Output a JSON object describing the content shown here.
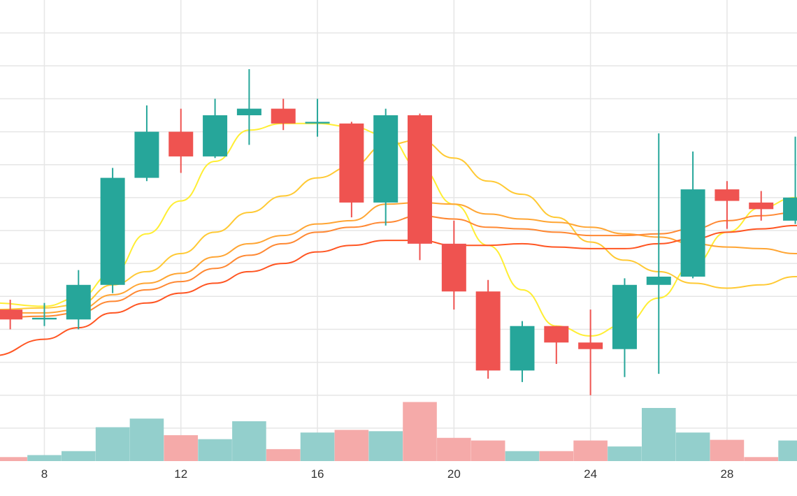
{
  "chart_data": {
    "type": "candlestick",
    "x_ticks": [
      8,
      12,
      16,
      20,
      24,
      28
    ],
    "x_range": [
      6.7,
      30.05
    ],
    "price_range": [
      0,
      14
    ],
    "volume_range": [
      0,
      100
    ],
    "grid": true,
    "colors": {
      "up": "#26a69a",
      "down": "#ef5350",
      "up_volume": "#93cfcc",
      "down_volume": "#f5aaa9"
    },
    "candles": [
      {
        "x": 7,
        "open": 4.6,
        "close": 4.3,
        "high": 4.9,
        "low": 4.0,
        "volume": 6,
        "direction": "down"
      },
      {
        "x": 8,
        "open": 4.3,
        "close": 4.35,
        "high": 4.8,
        "low": 4.1,
        "volume": 9,
        "direction": "up"
      },
      {
        "x": 9,
        "open": 4.3,
        "close": 5.35,
        "high": 5.8,
        "low": 4.0,
        "volume": 15,
        "direction": "up"
      },
      {
        "x": 10,
        "open": 5.35,
        "close": 8.6,
        "high": 8.9,
        "low": 5.1,
        "volume": 51,
        "direction": "up"
      },
      {
        "x": 11,
        "open": 8.6,
        "close": 10.0,
        "high": 10.8,
        "low": 8.5,
        "volume": 64,
        "direction": "up"
      },
      {
        "x": 12,
        "open": 10.0,
        "close": 9.25,
        "high": 10.7,
        "low": 8.75,
        "volume": 39,
        "direction": "down"
      },
      {
        "x": 13,
        "open": 9.25,
        "close": 10.5,
        "high": 11.0,
        "low": 9.2,
        "volume": 33,
        "direction": "up"
      },
      {
        "x": 14,
        "open": 10.5,
        "close": 10.7,
        "high": 11.9,
        "low": 9.6,
        "volume": 60,
        "direction": "up"
      },
      {
        "x": 15,
        "open": 10.7,
        "close": 10.25,
        "high": 11.0,
        "low": 10.05,
        "volume": 18,
        "direction": "down"
      },
      {
        "x": 16,
        "open": 10.25,
        "close": 10.3,
        "high": 11.0,
        "low": 9.85,
        "volume": 43,
        "direction": "up"
      },
      {
        "x": 17,
        "open": 10.25,
        "close": 7.85,
        "high": 10.3,
        "low": 7.4,
        "volume": 47,
        "direction": "down"
      },
      {
        "x": 18,
        "open": 7.85,
        "close": 10.5,
        "high": 10.7,
        "low": 7.15,
        "volume": 45,
        "direction": "up"
      },
      {
        "x": 19,
        "open": 10.5,
        "close": 6.6,
        "high": 10.55,
        "low": 6.1,
        "volume": 89,
        "direction": "down"
      },
      {
        "x": 20,
        "open": 6.6,
        "close": 5.15,
        "high": 7.3,
        "low": 4.6,
        "volume": 35,
        "direction": "down"
      },
      {
        "x": 21,
        "open": 5.15,
        "close": 2.75,
        "high": 5.5,
        "low": 2.5,
        "volume": 31,
        "direction": "down"
      },
      {
        "x": 22,
        "open": 2.75,
        "close": 4.1,
        "high": 4.25,
        "low": 2.4,
        "volume": 15,
        "direction": "up"
      },
      {
        "x": 23,
        "open": 4.1,
        "close": 3.6,
        "high": 4.1,
        "low": 2.95,
        "volume": 15,
        "direction": "down"
      },
      {
        "x": 24,
        "open": 3.6,
        "close": 3.4,
        "high": 4.6,
        "low": 2.0,
        "volume": 31,
        "direction": "down"
      },
      {
        "x": 25,
        "open": 3.4,
        "close": 5.35,
        "high": 5.55,
        "low": 2.55,
        "volume": 22,
        "direction": "up"
      },
      {
        "x": 26,
        "open": 5.35,
        "close": 5.6,
        "high": 9.95,
        "low": 2.65,
        "volume": 80,
        "direction": "up"
      },
      {
        "x": 27,
        "open": 5.6,
        "close": 8.25,
        "high": 9.4,
        "low": 5.55,
        "volume": 43,
        "direction": "up"
      },
      {
        "x": 28,
        "open": 8.25,
        "close": 7.9,
        "high": 8.5,
        "low": 7.05,
        "volume": 32,
        "direction": "down"
      },
      {
        "x": 29,
        "open": 7.85,
        "close": 7.65,
        "high": 8.2,
        "low": 7.3,
        "volume": 6,
        "direction": "down"
      },
      {
        "x": 30,
        "open": 7.3,
        "close": 8.0,
        "high": 9.85,
        "low": 7.2,
        "volume": 31,
        "direction": "up"
      }
    ],
    "overlay_lines": [
      {
        "color": "#ffee33",
        "points": [
          [
            6.5,
            4.8
          ],
          [
            8,
            4.7
          ],
          [
            9,
            4.95
          ],
          [
            10,
            5.7
          ],
          [
            11,
            6.9
          ],
          [
            12,
            7.9
          ],
          [
            13,
            9.1
          ],
          [
            14,
            10.05
          ],
          [
            15,
            10.25
          ],
          [
            16,
            10.25
          ],
          [
            17,
            10.15
          ],
          [
            18,
            9.9
          ],
          [
            19,
            8.9
          ],
          [
            20,
            7.8
          ],
          [
            21,
            6.55
          ],
          [
            22,
            5.2
          ],
          [
            23,
            4.1
          ],
          [
            24,
            3.8
          ],
          [
            25,
            4.15
          ],
          [
            26,
            4.95
          ],
          [
            27,
            5.95
          ],
          [
            28,
            6.95
          ],
          [
            29,
            7.7
          ],
          [
            30,
            8.0
          ],
          [
            30.5,
            8.05
          ]
        ]
      },
      {
        "color": "#ffc933",
        "points": [
          [
            6.5,
            4.6
          ],
          [
            8,
            4.65
          ],
          [
            9,
            4.75
          ],
          [
            10,
            5.35
          ],
          [
            11,
            5.75
          ],
          [
            12,
            6.3
          ],
          [
            13,
            6.95
          ],
          [
            14,
            7.55
          ],
          [
            15,
            8.05
          ],
          [
            16,
            8.6
          ],
          [
            17,
            8.95
          ],
          [
            18,
            9.6
          ],
          [
            19,
            9.75
          ],
          [
            20,
            9.2
          ],
          [
            21,
            8.5
          ],
          [
            22,
            8.1
          ],
          [
            23,
            7.4
          ],
          [
            24,
            6.65
          ],
          [
            25,
            6.1
          ],
          [
            26,
            5.75
          ],
          [
            27,
            5.4
          ],
          [
            28,
            5.25
          ],
          [
            29,
            5.35
          ],
          [
            30,
            5.6
          ],
          [
            30.5,
            5.7
          ]
        ]
      },
      {
        "color": "#ffa533",
        "points": [
          [
            6.5,
            4.5
          ],
          [
            8,
            4.5
          ],
          [
            9,
            4.6
          ],
          [
            10,
            5.05
          ],
          [
            11,
            5.4
          ],
          [
            12,
            5.7
          ],
          [
            13,
            6.2
          ],
          [
            14,
            6.6
          ],
          [
            15,
            6.85
          ],
          [
            16,
            7.2
          ],
          [
            17,
            7.3
          ],
          [
            18,
            7.8
          ],
          [
            19,
            7.85
          ],
          [
            20,
            7.8
          ],
          [
            21,
            7.5
          ],
          [
            22,
            7.35
          ],
          [
            23,
            7.25
          ],
          [
            24,
            7.1
          ],
          [
            25,
            6.9
          ],
          [
            26,
            6.8
          ],
          [
            27,
            6.6
          ],
          [
            28,
            6.5
          ],
          [
            29,
            6.45
          ],
          [
            30,
            6.3
          ],
          [
            30.5,
            6.25
          ]
        ]
      },
      {
        "color": "#ff8833",
        "points": [
          [
            6.5,
            4.35
          ],
          [
            8,
            4.4
          ],
          [
            9,
            4.5
          ],
          [
            10,
            4.85
          ],
          [
            11,
            5.2
          ],
          [
            12,
            5.45
          ],
          [
            13,
            5.85
          ],
          [
            14,
            6.25
          ],
          [
            15,
            6.6
          ],
          [
            16,
            6.95
          ],
          [
            17,
            7.1
          ],
          [
            18,
            7.25
          ],
          [
            19,
            7.45
          ],
          [
            20,
            7.35
          ],
          [
            21,
            7.1
          ],
          [
            22,
            7.05
          ],
          [
            23,
            6.95
          ],
          [
            24,
            6.85
          ],
          [
            25,
            6.85
          ],
          [
            26,
            6.9
          ],
          [
            27,
            7.05
          ],
          [
            28,
            7.3
          ],
          [
            29,
            7.45
          ],
          [
            30,
            7.55
          ],
          [
            30.5,
            7.55
          ]
        ]
      },
      {
        "color": "#ff5522",
        "points": [
          [
            6.5,
            3.2
          ],
          [
            8,
            3.7
          ],
          [
            9,
            4.05
          ],
          [
            10,
            4.5
          ],
          [
            11,
            4.8
          ],
          [
            12,
            5.1
          ],
          [
            13,
            5.4
          ],
          [
            14,
            5.75
          ],
          [
            15,
            6.0
          ],
          [
            16,
            6.35
          ],
          [
            17,
            6.55
          ],
          [
            18,
            6.7
          ],
          [
            19,
            6.7
          ],
          [
            20,
            6.55
          ],
          [
            21,
            6.55
          ],
          [
            22,
            6.6
          ],
          [
            23,
            6.5
          ],
          [
            24,
            6.45
          ],
          [
            25,
            6.45
          ],
          [
            26,
            6.6
          ],
          [
            27,
            6.75
          ],
          [
            28,
            6.95
          ],
          [
            29,
            7.05
          ],
          [
            30,
            7.15
          ],
          [
            30.5,
            7.2
          ]
        ]
      }
    ]
  }
}
